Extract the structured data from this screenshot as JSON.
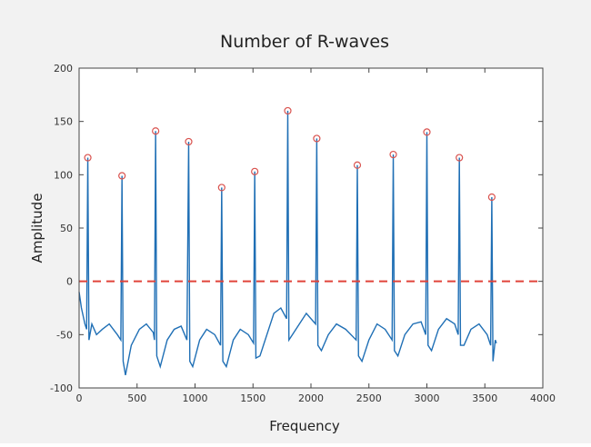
{
  "chart_data": {
    "type": "line",
    "title": "Number of R-waves",
    "xlabel": "Frequency",
    "ylabel": "Amplitude",
    "xlim": [
      0,
      4000
    ],
    "xticks": [
      0,
      500,
      1000,
      1500,
      2000,
      2500,
      3000,
      3500,
      4000
    ],
    "ylim": [
      -100,
      200
    ],
    "yticks": [
      -100,
      -50,
      0,
      50,
      100,
      150,
      200
    ],
    "x": [
      0,
      20,
      50,
      65,
      75,
      85,
      110,
      150,
      200,
      260,
      330,
      360,
      370,
      380,
      400,
      450,
      520,
      580,
      640,
      650,
      660,
      670,
      700,
      760,
      820,
      880,
      930,
      945,
      955,
      980,
      1040,
      1100,
      1170,
      1220,
      1230,
      1240,
      1270,
      1330,
      1390,
      1460,
      1505,
      1515,
      1525,
      1560,
      1620,
      1680,
      1740,
      1790,
      1800,
      1810,
      1840,
      1900,
      1960,
      2040,
      2050,
      2060,
      2090,
      2150,
      2220,
      2300,
      2390,
      2400,
      2410,
      2440,
      2500,
      2570,
      2640,
      2700,
      2710,
      2720,
      2750,
      2810,
      2880,
      2950,
      2990,
      3000,
      3010,
      3040,
      3100,
      3170,
      3240,
      3270,
      3280,
      3290,
      3320,
      3380,
      3450,
      3520,
      3550,
      3560,
      3570,
      3590,
      3600
    ],
    "series": [
      {
        "color": "#1f6fb5",
        "values": [
          -10,
          -25,
          -40,
          -45,
          116,
          -55,
          -40,
          -50,
          -45,
          -40,
          -50,
          -55,
          99,
          -75,
          -88,
          -60,
          -45,
          -40,
          -48,
          -55,
          141,
          -70,
          -80,
          -55,
          -45,
          -42,
          -55,
          131,
          -75,
          -80,
          -55,
          -45,
          -50,
          -60,
          88,
          -75,
          -80,
          -55,
          -45,
          -50,
          -58,
          103,
          -72,
          -70,
          -50,
          -30,
          -25,
          -35,
          160,
          -55,
          -50,
          -40,
          -30,
          -40,
          134,
          -60,
          -65,
          -50,
          -40,
          -45,
          -55,
          109,
          -70,
          -75,
          -55,
          -40,
          -45,
          -55,
          119,
          -65,
          -70,
          -50,
          -40,
          -38,
          -50,
          140,
          -60,
          -65,
          -45,
          -35,
          -40,
          -50,
          116,
          -60,
          -60,
          -45,
          -40,
          -50,
          -60,
          79,
          -75,
          -55,
          -58
        ]
      }
    ],
    "peaks": {
      "color": "#d9534f",
      "x": [
        75,
        370,
        660,
        945,
        1230,
        1515,
        1800,
        2050,
        2400,
        2710,
        3000,
        3280,
        3560
      ],
      "values": [
        116,
        99,
        141,
        131,
        88,
        103,
        160,
        134,
        109,
        119,
        140,
        116,
        79
      ]
    },
    "hline": {
      "value": 0,
      "color": "#e0443a",
      "dashed": true
    }
  }
}
